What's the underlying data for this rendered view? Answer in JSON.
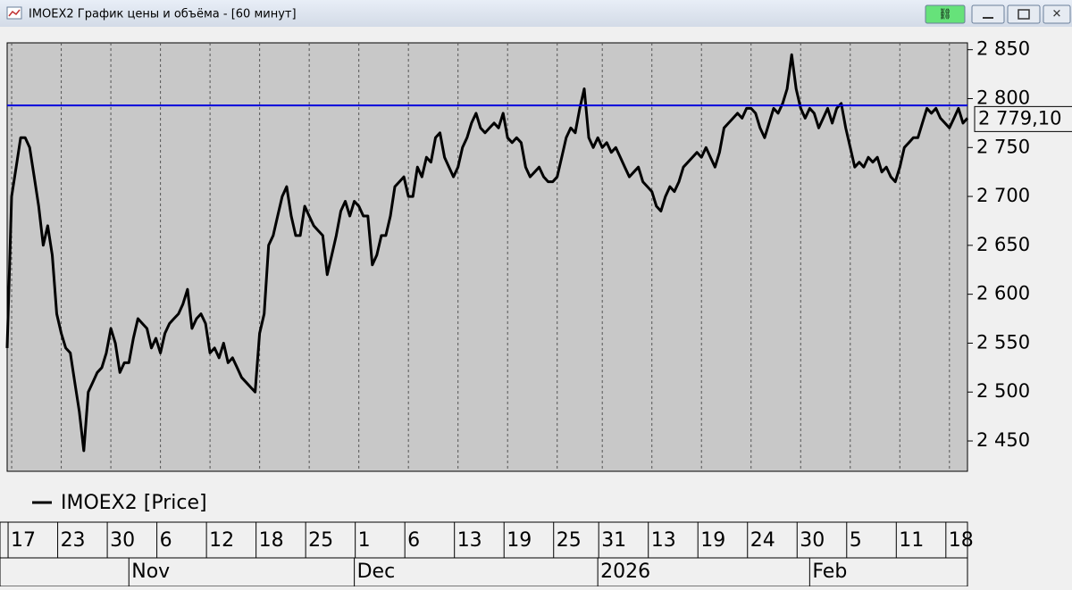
{
  "window": {
    "title": "IMOEX2 График цены и объёма - [60 минут]"
  },
  "chart_data": {
    "type": "line",
    "grid": true,
    "legend": "bottom-left",
    "series": [
      {
        "name": "IMOEX2 [Price]",
        "color": "#000000",
        "values": [
          2545,
          2700,
          2730,
          2760,
          2760,
          2750,
          2720,
          2690,
          2650,
          2670,
          2640,
          2580,
          2560,
          2545,
          2540,
          2510,
          2480,
          2440,
          2500,
          2510,
          2520,
          2525,
          2540,
          2565,
          2550,
          2520,
          2530,
          2530,
          2555,
          2575,
          2570,
          2565,
          2545,
          2555,
          2540,
          2560,
          2570,
          2575,
          2580,
          2590,
          2605,
          2565,
          2575,
          2580,
          2570,
          2540,
          2545,
          2535,
          2550,
          2530,
          2535,
          2525,
          2515,
          2510,
          2505,
          2500,
          2560,
          2580,
          2650,
          2660,
          2680,
          2700,
          2710,
          2680,
          2660,
          2660,
          2690,
          2680,
          2670,
          2665,
          2660,
          2620,
          2640,
          2660,
          2685,
          2695,
          2680,
          2695,
          2690,
          2680,
          2680,
          2630,
          2640,
          2660,
          2660,
          2680,
          2710,
          2715,
          2720,
          2700,
          2700,
          2730,
          2720,
          2740,
          2735,
          2760,
          2765,
          2740,
          2730,
          2720,
          2730,
          2750,
          2760,
          2775,
          2785,
          2770,
          2765,
          2770,
          2775,
          2770,
          2785,
          2760,
          2755,
          2760,
          2755,
          2730,
          2720,
          2725,
          2730,
          2720,
          2715,
          2715,
          2720,
          2740,
          2760,
          2770,
          2765,
          2790,
          2810,
          2760,
          2750,
          2760,
          2750,
          2755,
          2745,
          2750,
          2740,
          2730,
          2720,
          2725,
          2730,
          2715,
          2710,
          2705,
          2690,
          2685,
          2700,
          2710,
          2705,
          2715,
          2730,
          2735,
          2740,
          2745,
          2740,
          2750,
          2740,
          2730,
          2745,
          2770,
          2775,
          2780,
          2785,
          2780,
          2790,
          2790,
          2785,
          2770,
          2760,
          2775,
          2790,
          2785,
          2795,
          2810,
          2845,
          2810,
          2790,
          2780,
          2790,
          2785,
          2770,
          2780,
          2790,
          2775,
          2790,
          2795,
          2770,
          2750,
          2730,
          2735,
          2730,
          2740,
          2735,
          2740,
          2725,
          2730,
          2720,
          2715,
          2730,
          2750,
          2755,
          2760,
          2760,
          2775,
          2790,
          2785,
          2790,
          2780,
          2775,
          2770,
          2780,
          2790,
          2775,
          2780
        ]
      }
    ],
    "ylim": [
      2419,
      2857
    ],
    "yticks": [
      {
        "value": 2450,
        "label": "2 450"
      },
      {
        "value": 2500,
        "label": "2 500"
      },
      {
        "value": 2550,
        "label": "2 550"
      },
      {
        "value": 2600,
        "label": "2 600"
      },
      {
        "value": 2650,
        "label": "2 650"
      },
      {
        "value": 2700,
        "label": "2 700"
      },
      {
        "value": 2750,
        "label": "2 750"
      },
      {
        "value": 2800,
        "label": "2 800"
      },
      {
        "value": 2850,
        "label": "2 850"
      }
    ],
    "xlim": [
      0,
      213
    ],
    "xticks": [
      {
        "value": 1,
        "label": "17"
      },
      {
        "value": 12,
        "label": "23"
      },
      {
        "value": 23,
        "label": "30"
      },
      {
        "value": 34,
        "label": "6"
      },
      {
        "value": 45,
        "label": "12"
      },
      {
        "value": 56,
        "label": "18"
      },
      {
        "value": 67,
        "label": "25"
      },
      {
        "value": 78,
        "label": "1"
      },
      {
        "value": 89,
        "label": "6"
      },
      {
        "value": 100,
        "label": "13"
      },
      {
        "value": 111,
        "label": "19"
      },
      {
        "value": 122,
        "label": "25"
      },
      {
        "value": 132,
        "label": "31"
      },
      {
        "value": 143,
        "label": "13"
      },
      {
        "value": 154,
        "label": "19"
      },
      {
        "value": 165,
        "label": "24"
      },
      {
        "value": 176,
        "label": "30"
      },
      {
        "value": 187,
        "label": "5"
      },
      {
        "value": 198,
        "label": "11"
      },
      {
        "value": 209,
        "label": "18"
      }
    ],
    "months": [
      {
        "value": 27,
        "label": "Nov"
      },
      {
        "value": 77,
        "label": "Dec"
      },
      {
        "value": 131,
        "label": "2026"
      },
      {
        "value": 178,
        "label": "Feb"
      }
    ],
    "level_line": {
      "value": 2793,
      "color": "#0000dd"
    },
    "last_value": {
      "value": 2779.1,
      "label": "2 779,10"
    }
  }
}
